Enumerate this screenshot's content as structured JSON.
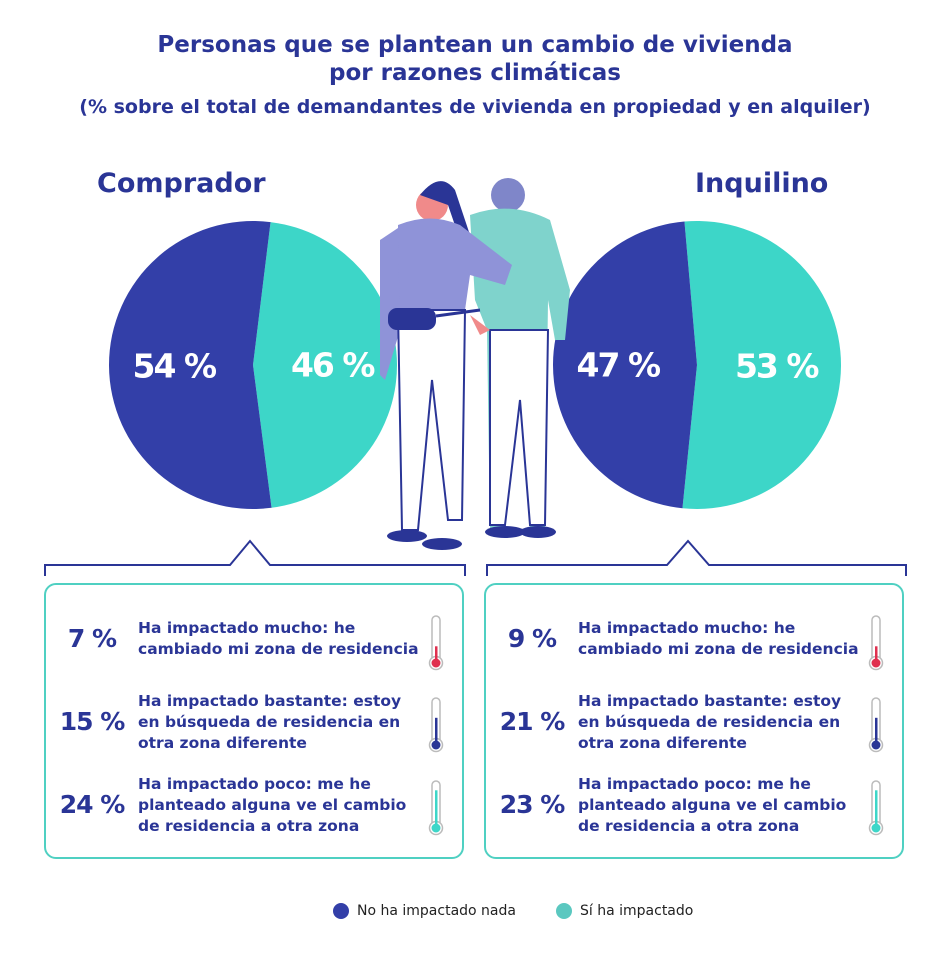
{
  "title_line1": "Personas que se plantean un cambio de vivienda",
  "title_line2": "por razones climáticas",
  "subtitle": "(% sobre el total de demandantes de vivienda en propiedad y en alquiler)",
  "colors": {
    "no_impact": "#333fa8",
    "impact": "#3dd6c8",
    "text": "#2a3596",
    "hot": "#e0304f"
  },
  "chart_data": [
    {
      "type": "pie",
      "title": "Comprador",
      "categories": [
        "No ha impactado nada",
        "Sí ha impactado"
      ],
      "values": [
        54,
        46
      ],
      "labels": [
        "54 %",
        "46 %"
      ]
    },
    {
      "type": "pie",
      "title": "Inquilino",
      "categories": [
        "No ha impactado nada",
        "Sí ha impactado"
      ],
      "values": [
        47,
        53
      ],
      "labels": [
        "47 %",
        "53 %"
      ]
    }
  ],
  "breakdown": {
    "comprador": [
      {
        "pct": "7 %",
        "text": "Ha impactado mucho: he cambiado mi zona de residencia",
        "level": 0.35,
        "color": "#e0304f"
      },
      {
        "pct": "15 %",
        "text": "Ha impactado bastante: estoy en búsqueda de residencia en otra zona diferente",
        "level": 0.6,
        "color": "#2a3596"
      },
      {
        "pct": "24 %",
        "text": "Ha impactado poco: me he planteado alguna ve el cambio de residencia a otra zona",
        "level": 0.85,
        "color": "#3dd6c8"
      }
    ],
    "inquilino": [
      {
        "pct": "9 %",
        "text": "Ha impactado mucho: he cambiado mi zona de residencia",
        "level": 0.35,
        "color": "#e0304f"
      },
      {
        "pct": "21 %",
        "text": "Ha impactado bastante: estoy en búsqueda de residencia en otra zona diferente",
        "level": 0.6,
        "color": "#2a3596"
      },
      {
        "pct": "23 %",
        "text": "Ha impactado poco: me he planteado alguna ve el cambio de residencia a otra zona",
        "level": 0.85,
        "color": "#3dd6c8"
      }
    ]
  },
  "legend": [
    {
      "label": "No ha impactado nada",
      "color": "#333fa8"
    },
    {
      "label": "Sí ha impactado",
      "color": "#3dd6c8"
    }
  ]
}
